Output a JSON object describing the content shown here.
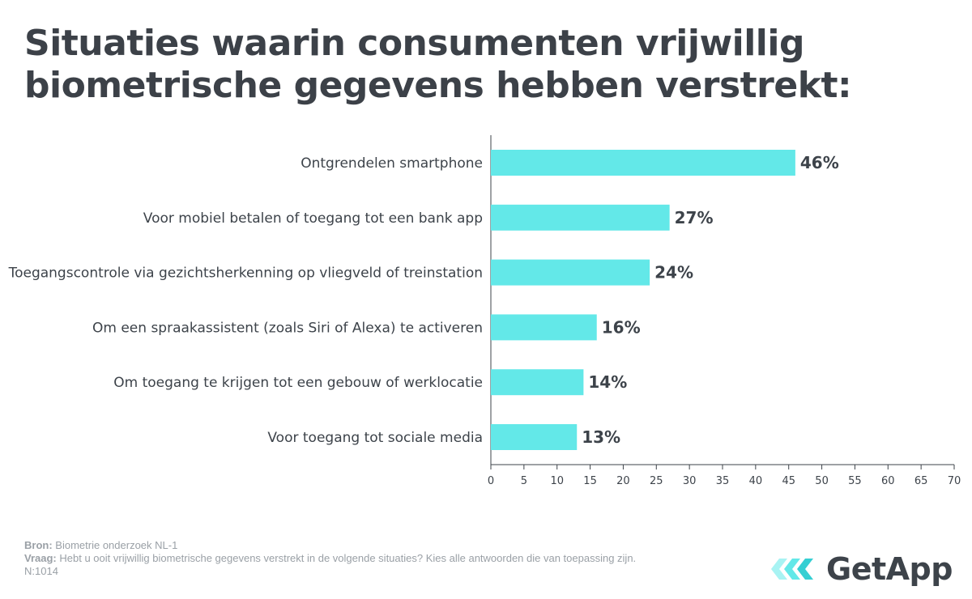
{
  "title": {
    "line1": "Situaties waarin consumenten vrijwillig",
    "line2": "biometrische gegevens hebben verstrekt:"
  },
  "chart_data": {
    "type": "bar",
    "orientation": "horizontal",
    "categories": [
      "Ontgrendelen smartphone",
      "Voor mobiel betalen of toegang tot een bank app",
      "Toegangscontrole via gezichtsherkenning op vliegveld of treinstation",
      "Om een spraakassistent (zoals Siri of Alexa) te activeren",
      "Om toegang te krijgen tot een gebouw of werklocatie",
      "Voor toegang tot sociale media"
    ],
    "values": [
      46,
      27,
      24,
      16,
      14,
      13
    ],
    "value_labels": [
      "46%",
      "27%",
      "24%",
      "16%",
      "14%",
      "13%"
    ],
    "xlim": [
      0,
      70
    ],
    "xticks": [
      0,
      5,
      10,
      15,
      20,
      25,
      30,
      35,
      40,
      45,
      50,
      55,
      60,
      65,
      70
    ],
    "bar_color": "#63e8e8",
    "grid": false
  },
  "footer": {
    "source_label": "Bron:",
    "source_text": "Biometrie onderzoek NL-1",
    "question_label": "Vraag:",
    "question_text": "Hebt u ooit vrijwillig biometrische gegevens verstrekt in de volgende situaties? Kies alle antwoorden die van toepassing zijn.",
    "n_text": "N:1014"
  },
  "logo": {
    "text": "GetApp",
    "icon": "getapp-chevrons-icon",
    "accent_color": "#63e8e8"
  }
}
